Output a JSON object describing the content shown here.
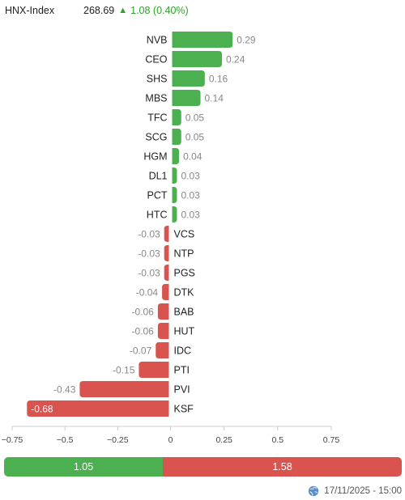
{
  "header": {
    "index_name": "HNX-Index",
    "index_value": "268.69",
    "change_arrow": "▲",
    "change_text": "1.08 (0.40%)"
  },
  "colors": {
    "positive": "#4caf50",
    "negative": "#d9534f",
    "change_text": "#2ca02c"
  },
  "chart_data": {
    "type": "bar",
    "orientation": "horizontal",
    "categories": [
      "NVB",
      "CEO",
      "SHS",
      "MBS",
      "TFC",
      "SCG",
      "HGM",
      "DL1",
      "PCT",
      "HTC",
      "VCS",
      "NTP",
      "PGS",
      "DTK",
      "BAB",
      "HUT",
      "IDC",
      "PTI",
      "PVI",
      "KSF"
    ],
    "values": [
      0.29,
      0.24,
      0.16,
      0.14,
      0.05,
      0.05,
      0.04,
      0.03,
      0.03,
      0.03,
      -0.03,
      -0.03,
      -0.03,
      -0.04,
      -0.06,
      -0.06,
      -0.07,
      -0.15,
      -0.43,
      -0.68
    ],
    "value_labels": [
      "0.29",
      "0.24",
      "0.16",
      "0.14",
      "0.05",
      "0.05",
      "0.04",
      "0.03",
      "0.03",
      "0.03",
      "-0.03",
      "-0.03",
      "-0.03",
      "-0.04",
      "-0.06",
      "-0.06",
      "-0.07",
      "-0.15",
      "-0.43",
      "-0.68"
    ],
    "xlim": [
      -0.75,
      0.75
    ],
    "xticks": [
      -0.75,
      -0.5,
      -0.25,
      0,
      0.25,
      0.5,
      0.75
    ],
    "xtick_labels": [
      "−0.75",
      "−0.5",
      "−0.25",
      "0",
      "0.25",
      "0.5",
      "0.75"
    ],
    "grid": false,
    "legend": "none"
  },
  "summary": {
    "advance_value": 1.05,
    "decline_value": 1.58,
    "advance_label": "1.05",
    "decline_label": "1.58"
  },
  "footer": {
    "timestamp": "17/11/2025 - 15:00",
    "icon": "globe-icon"
  }
}
